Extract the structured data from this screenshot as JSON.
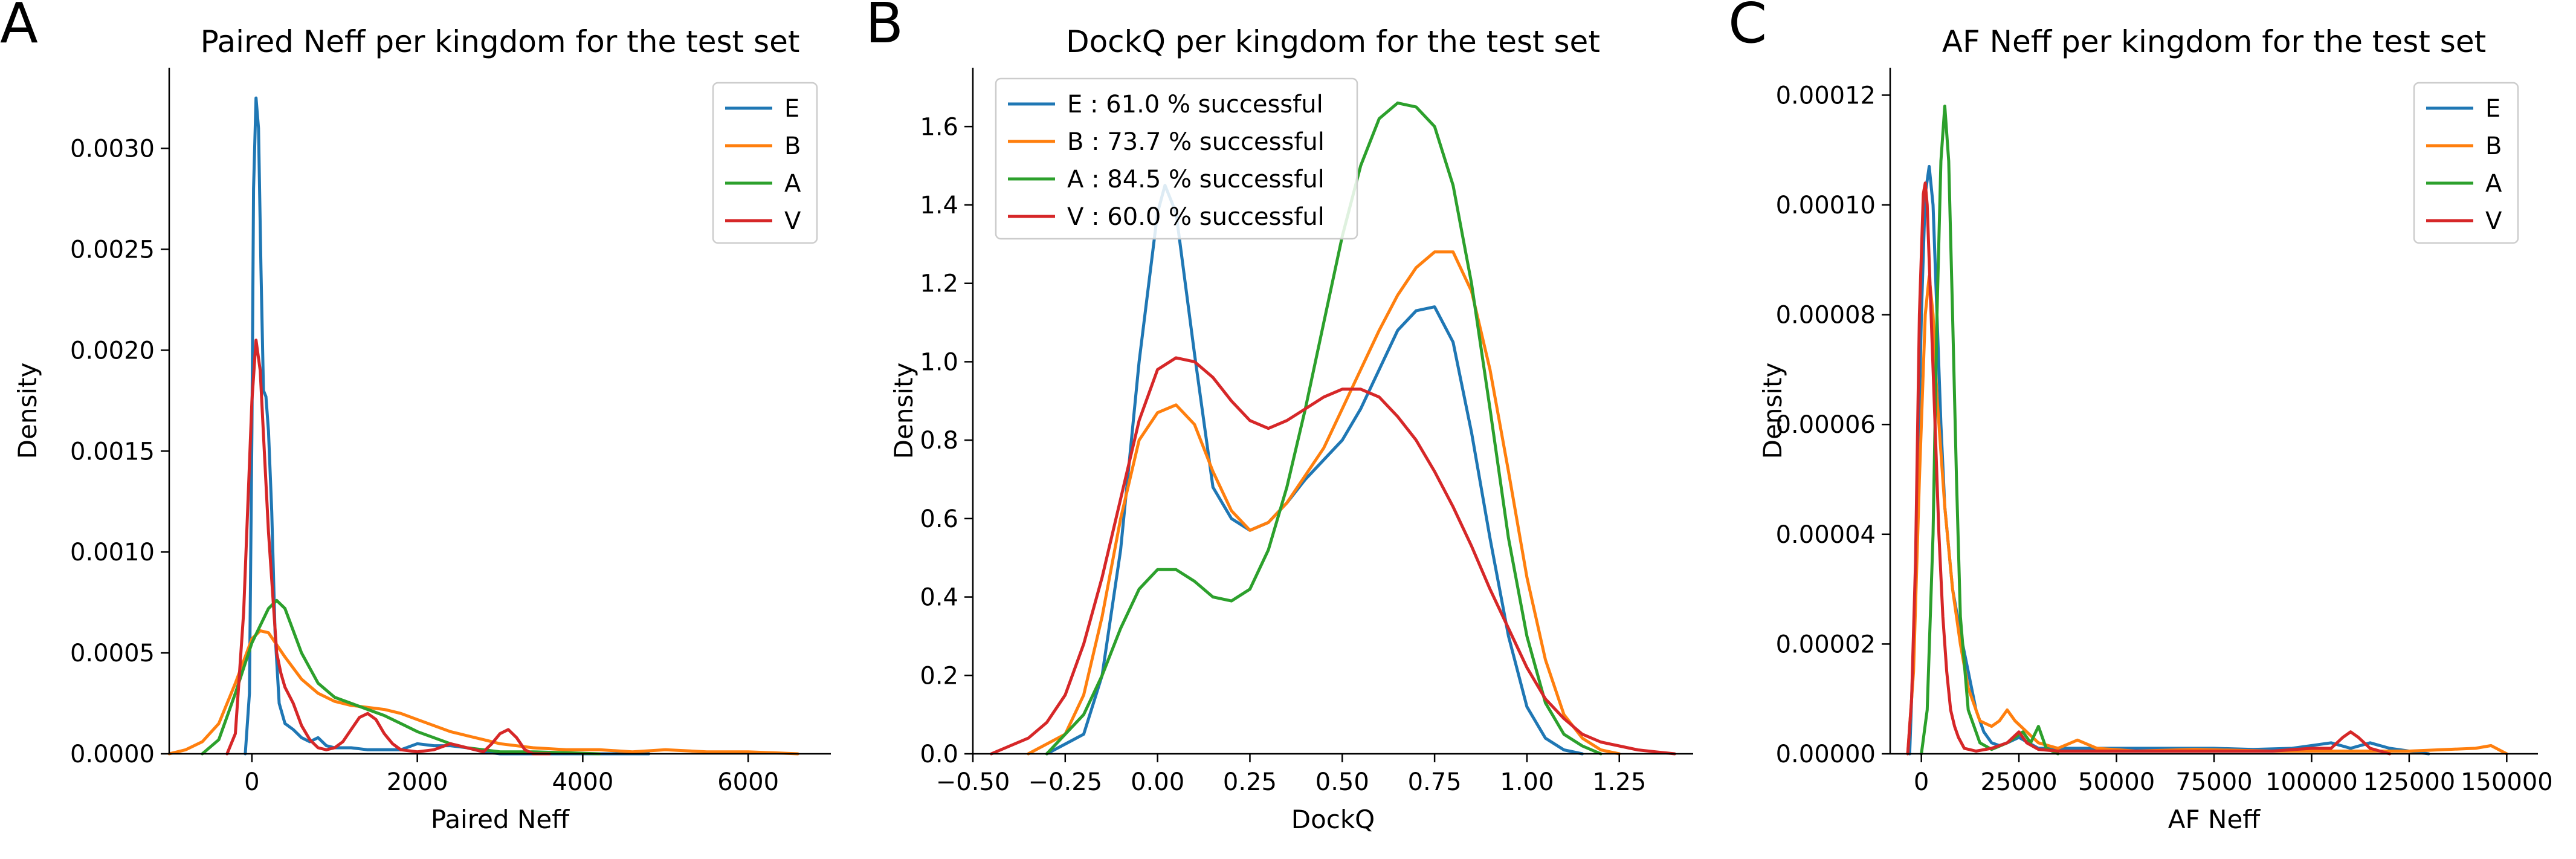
{
  "figure": {
    "panels": [
      {
        "letter": "A",
        "title": "Paired Neff per kingdom for the test set",
        "xlabel": "Paired Neff",
        "ylabel": "Density"
      },
      {
        "letter": "B",
        "title": "DockQ per kingdom for the test set",
        "xlabel": "DockQ",
        "ylabel": "Density"
      },
      {
        "letter": "C",
        "title": "AF Neff per kingdom for the test set",
        "xlabel": "AF Neff",
        "ylabel": "Density"
      }
    ]
  },
  "colors": {
    "E": "#1f77b4",
    "B": "#ff7f0e",
    "A": "#2ca02c",
    "V": "#d62728"
  },
  "chart_data": [
    {
      "type": "line",
      "title": "Paired Neff per kingdom for the test set",
      "xlabel": "Paired Neff",
      "ylabel": "Density",
      "xlim": [
        -1000,
        7000
      ],
      "ylim": [
        0,
        0.0034
      ],
      "xticks": [
        0,
        2000,
        4000,
        6000
      ],
      "xtick_labels": [
        "0",
        "2000",
        "4000",
        "6000"
      ],
      "yticks": [
        0,
        0.0005,
        0.001,
        0.0015,
        0.002,
        0.0025,
        0.003
      ],
      "ytick_labels": [
        "0.0000",
        "0.0005",
        "0.0010",
        "0.0015",
        "0.0020",
        "0.0025",
        "0.0030"
      ],
      "legend_position": "top-right",
      "series": [
        {
          "name": "E",
          "x": [
            -80,
            -30,
            0,
            20,
            50,
            80,
            110,
            140,
            170,
            200,
            240,
            280,
            330,
            400,
            500,
            600,
            700,
            800,
            900,
            1000,
            1200,
            1400,
            1600,
            1800,
            2000,
            2200,
            2400,
            2600,
            2800,
            3000,
            3200,
            3500,
            4000,
            4800
          ],
          "y": [
            0,
            0.0003,
            0.0016,
            0.0028,
            0.00325,
            0.0031,
            0.0024,
            0.0018,
            0.00177,
            0.0016,
            0.0012,
            0.0006,
            0.00025,
            0.00015,
            0.00012,
            8e-05,
            6e-05,
            8e-05,
            4e-05,
            3e-05,
            3e-05,
            2e-05,
            2e-05,
            2e-05,
            5e-05,
            4e-05,
            4e-05,
            3e-05,
            1e-05,
            0,
            0,
            0,
            0,
            0
          ]
        },
        {
          "name": "B",
          "x": [
            -1000,
            -800,
            -600,
            -400,
            -200,
            0,
            100,
            200,
            400,
            600,
            800,
            1000,
            1200,
            1400,
            1600,
            1800,
            2000,
            2200,
            2400,
            2600,
            2800,
            3000,
            3400,
            3800,
            4200,
            4600,
            5000,
            5500,
            6000,
            6300,
            6600
          ],
          "y": [
            0,
            2e-05,
            6e-05,
            0.00015,
            0.00035,
            0.00057,
            0.00061,
            0.0006,
            0.00048,
            0.00037,
            0.0003,
            0.00026,
            0.00024,
            0.00023,
            0.00022,
            0.0002,
            0.00017,
            0.00014,
            0.00011,
            9e-05,
            7e-05,
            5e-05,
            3e-05,
            2e-05,
            2e-05,
            1e-05,
            2e-05,
            1e-05,
            1e-05,
            5e-06,
            0
          ]
        },
        {
          "name": "A",
          "x": [
            -600,
            -400,
            -200,
            0,
            200,
            300,
            400,
            600,
            800,
            1000,
            1200,
            1400,
            1600,
            1800,
            2000,
            2200,
            2400,
            2600,
            2800,
            3000,
            3400,
            3800,
            4200
          ],
          "y": [
            0,
            7e-05,
            0.0003,
            0.00055,
            0.00072,
            0.00076,
            0.00072,
            0.0005,
            0.00035,
            0.00028,
            0.00025,
            0.00022,
            0.00019,
            0.00015,
            0.00011,
            8e-05,
            5e-05,
            3e-05,
            2e-05,
            1e-05,
            1e-05,
            5e-06,
            0
          ]
        },
        {
          "name": "V",
          "x": [
            -300,
            -200,
            -100,
            0,
            50,
            100,
            150,
            200,
            250,
            300,
            350,
            400,
            500,
            600,
            700,
            800,
            900,
            1000,
            1100,
            1200,
            1300,
            1400,
            1500,
            1600,
            1700,
            1800,
            2000,
            2200,
            2400,
            2600,
            2800,
            2900,
            3000,
            3100,
            3200,
            3300,
            3400,
            3600
          ],
          "y": [
            0,
            0.0001,
            0.0007,
            0.00175,
            0.00205,
            0.0019,
            0.0015,
            0.0011,
            0.0008,
            0.0005,
            0.0004,
            0.00033,
            0.00025,
            0.00014,
            7e-05,
            3e-05,
            2e-05,
            3e-05,
            6e-05,
            0.00012,
            0.00018,
            0.0002,
            0.00017,
            0.0001,
            5e-05,
            2e-05,
            1e-05,
            2e-05,
            5e-05,
            3e-05,
            1e-05,
            5e-05,
            0.0001,
            0.00012,
            8e-05,
            2e-05,
            0,
            0
          ]
        }
      ]
    },
    {
      "type": "line",
      "title": "DockQ per kingdom for the test set",
      "xlabel": "DockQ",
      "ylabel": "Density",
      "xlim": [
        -0.5,
        1.45
      ],
      "ylim": [
        0,
        1.75
      ],
      "xticks": [
        -0.5,
        -0.25,
        0,
        0.25,
        0.5,
        0.75,
        1.0,
        1.25
      ],
      "xtick_labels": [
        "−0.50",
        "−0.25",
        "0.00",
        "0.25",
        "0.50",
        "0.75",
        "1.00",
        "1.25"
      ],
      "yticks": [
        0,
        0.2,
        0.4,
        0.6,
        0.8,
        1.0,
        1.2,
        1.4,
        1.6
      ],
      "ytick_labels": [
        "0.0",
        "0.2",
        "0.4",
        "0.6",
        "0.8",
        "1.0",
        "1.2",
        "1.4",
        "1.6"
      ],
      "legend_position": "top-left",
      "series": [
        {
          "name": "E",
          "legend": "E : 61.0 % successful",
          "x": [
            -0.3,
            -0.2,
            -0.15,
            -0.1,
            -0.05,
            0.0,
            0.02,
            0.05,
            0.1,
            0.15,
            0.2,
            0.25,
            0.3,
            0.35,
            0.4,
            0.45,
            0.5,
            0.55,
            0.6,
            0.65,
            0.7,
            0.75,
            0.8,
            0.85,
            0.9,
            0.95,
            1.0,
            1.05,
            1.1,
            1.15
          ],
          "y": [
            0,
            0.05,
            0.2,
            0.52,
            1.0,
            1.38,
            1.45,
            1.38,
            1.02,
            0.68,
            0.6,
            0.57,
            0.59,
            0.64,
            0.7,
            0.75,
            0.8,
            0.88,
            0.98,
            1.08,
            1.13,
            1.14,
            1.05,
            0.82,
            0.55,
            0.3,
            0.12,
            0.04,
            0.01,
            0
          ]
        },
        {
          "name": "B",
          "legend": "B : 73.7 % successful",
          "x": [
            -0.35,
            -0.25,
            -0.2,
            -0.15,
            -0.1,
            -0.05,
            0.0,
            0.05,
            0.1,
            0.15,
            0.2,
            0.25,
            0.3,
            0.35,
            0.4,
            0.45,
            0.5,
            0.55,
            0.6,
            0.65,
            0.7,
            0.75,
            0.8,
            0.85,
            0.9,
            0.95,
            1.0,
            1.05,
            1.1,
            1.15,
            1.2,
            1.25
          ],
          "y": [
            0,
            0.05,
            0.15,
            0.35,
            0.6,
            0.8,
            0.87,
            0.89,
            0.84,
            0.72,
            0.62,
            0.57,
            0.59,
            0.64,
            0.71,
            0.78,
            0.88,
            0.98,
            1.08,
            1.17,
            1.24,
            1.28,
            1.28,
            1.18,
            0.98,
            0.72,
            0.45,
            0.24,
            0.1,
            0.04,
            0.01,
            0
          ]
        },
        {
          "name": "A",
          "legend": "A : 84.5 % successful",
          "x": [
            -0.3,
            -0.2,
            -0.15,
            -0.1,
            -0.05,
            0.0,
            0.05,
            0.1,
            0.15,
            0.2,
            0.25,
            0.3,
            0.35,
            0.4,
            0.45,
            0.5,
            0.55,
            0.6,
            0.65,
            0.7,
            0.75,
            0.8,
            0.85,
            0.9,
            0.95,
            1.0,
            1.05,
            1.1,
            1.15,
            1.2
          ],
          "y": [
            0,
            0.1,
            0.2,
            0.32,
            0.42,
            0.47,
            0.47,
            0.44,
            0.4,
            0.39,
            0.42,
            0.52,
            0.68,
            0.88,
            1.1,
            1.32,
            1.5,
            1.62,
            1.66,
            1.65,
            1.6,
            1.45,
            1.2,
            0.88,
            0.55,
            0.3,
            0.13,
            0.05,
            0.02,
            0
          ]
        },
        {
          "name": "V",
          "legend": "V : 60.0 % successful",
          "x": [
            -0.45,
            -0.4,
            -0.35,
            -0.3,
            -0.25,
            -0.2,
            -0.15,
            -0.1,
            -0.05,
            0.0,
            0.05,
            0.1,
            0.15,
            0.2,
            0.25,
            0.3,
            0.35,
            0.4,
            0.45,
            0.5,
            0.55,
            0.6,
            0.65,
            0.7,
            0.75,
            0.8,
            0.85,
            0.9,
            0.95,
            1.0,
            1.05,
            1.1,
            1.15,
            1.2,
            1.25,
            1.3,
            1.35,
            1.4
          ],
          "y": [
            0,
            0.02,
            0.04,
            0.08,
            0.15,
            0.28,
            0.45,
            0.65,
            0.85,
            0.98,
            1.01,
            1.0,
            0.96,
            0.9,
            0.85,
            0.83,
            0.85,
            0.88,
            0.91,
            0.93,
            0.93,
            0.91,
            0.86,
            0.8,
            0.72,
            0.63,
            0.53,
            0.42,
            0.32,
            0.22,
            0.14,
            0.09,
            0.05,
            0.03,
            0.02,
            0.01,
            0.005,
            0
          ]
        }
      ]
    },
    {
      "type": "line",
      "title": "AF Neff per kingdom for the test set",
      "xlabel": "AF Neff",
      "ylabel": "Density",
      "xlim": [
        -8000,
        158000
      ],
      "ylim": [
        0,
        0.000125
      ],
      "xticks": [
        0,
        25000,
        50000,
        75000,
        100000,
        125000,
        150000
      ],
      "xtick_labels": [
        "0",
        "25000",
        "50000",
        "75000",
        "100000",
        "125000",
        "150000"
      ],
      "yticks": [
        0,
        2e-05,
        4e-05,
        6e-05,
        8e-05,
        0.0001,
        0.00012
      ],
      "ytick_labels": [
        "0.00000",
        "0.00002",
        "0.00004",
        "0.00006",
        "0.00008",
        "0.00010",
        "0.00012"
      ],
      "legend_position": "top-right",
      "series": [
        {
          "name": "E",
          "x": [
            -3000,
            -1500,
            0,
            1000,
            2000,
            3000,
            4000,
            5000,
            6000,
            8000,
            10000,
            12000,
            14000,
            16000,
            18000,
            20000,
            22000,
            25000,
            30000,
            40000,
            55000,
            65000,
            75000,
            85000,
            95000,
            105000,
            110000,
            115000,
            120000,
            125000,
            130000
          ],
          "y": [
            0,
            3e-05,
            8e-05,
            0.000102,
            0.000107,
            0.0001,
            8e-05,
            6e-05,
            4.5e-05,
            3e-05,
            2.2e-05,
            1.5e-05,
            8e-06,
            4e-06,
            2e-06,
            1.5e-06,
            2e-06,
            3e-06,
            1e-06,
            1e-06,
            1e-06,
            1e-06,
            1e-06,
            8e-07,
            1e-06,
            2e-06,
            1e-06,
            2e-06,
            1e-06,
            5e-07,
            0
          ]
        },
        {
          "name": "B",
          "x": [
            -3500,
            -2000,
            -500,
            1000,
            2000,
            3000,
            4000,
            6000,
            8000,
            10000,
            12000,
            15000,
            18000,
            20000,
            22000,
            24000,
            27000,
            30000,
            35000,
            40000,
            45000,
            55000,
            70000,
            90000,
            110000,
            125000,
            135000,
            142000,
            146000,
            150000
          ],
          "y": [
            0,
            1.5e-05,
            5e-05,
            8e-05,
            8.7e-05,
            8e-05,
            6.5e-05,
            4.5e-05,
            3e-05,
            2e-05,
            1.2e-05,
            6e-06,
            5e-06,
            6e-06,
            8e-06,
            6e-06,
            4e-06,
            2e-06,
            1e-06,
            2.5e-06,
            1e-06,
            5e-07,
            8e-07,
            5e-07,
            5e-07,
            5e-07,
            8e-07,
            1e-06,
            1.5e-06,
            0
          ]
        },
        {
          "name": "A",
          "x": [
            0,
            1500,
            3000,
            4000,
            5000,
            6000,
            7000,
            8000,
            9000,
            10000,
            12000,
            15000,
            18000,
            22000,
            26000,
            28000,
            30000,
            32000,
            35000
          ],
          "y": [
            0,
            8e-06,
            4e-05,
            8e-05,
            0.000108,
            0.000118,
            0.000108,
            8e-05,
            5e-05,
            2.5e-05,
            8e-06,
            2e-06,
            8e-07,
            2e-06,
            4e-06,
            2e-06,
            5e-06,
            1e-06,
            0
          ]
        },
        {
          "name": "V",
          "x": [
            -3500,
            -2500,
            -1500,
            -500,
            500,
            1000,
            1500,
            2500,
            3500,
            4500,
            5500,
            6500,
            7500,
            8500,
            9500,
            11000,
            14000,
            18000,
            22000,
            25000,
            27000,
            30000,
            35000,
            50000,
            70000,
            90000,
            100000,
            105000,
            108000,
            110000,
            112000,
            115000,
            120000
          ],
          "y": [
            0,
            1e-05,
            3.5e-05,
            8e-05,
            0.000102,
            0.000104,
            0.0001,
            8e-05,
            6e-05,
            4e-05,
            2.5e-05,
            1.5e-05,
            8e-06,
            5e-06,
            3e-06,
            1e-06,
            5e-07,
            1e-06,
            2e-06,
            4e-06,
            2e-06,
            8e-07,
            5e-07,
            5e-07,
            5e-07,
            5e-07,
            1e-06,
            1e-06,
            3e-06,
            4e-06,
            3e-06,
            1e-06,
            0
          ]
        }
      ]
    }
  ]
}
